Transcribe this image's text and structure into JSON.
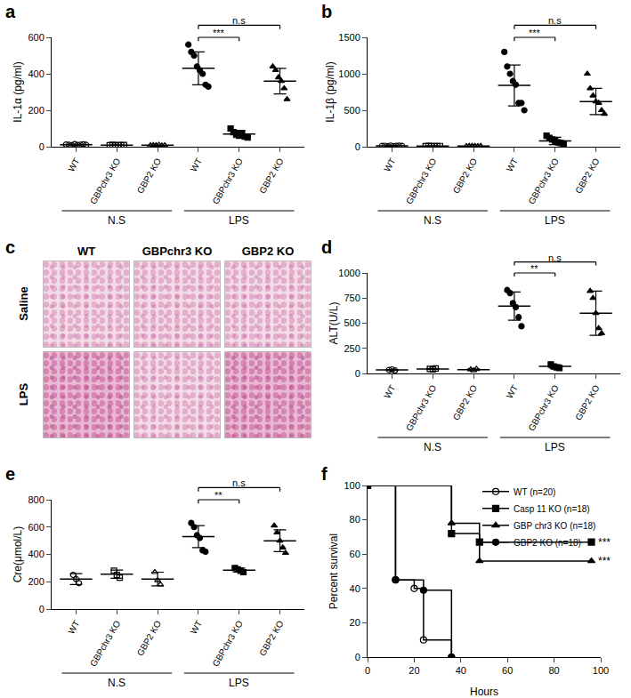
{
  "chart_data": [
    {
      "panel": "a",
      "type": "dot",
      "ylabel": "IL-1α (pg/ml)",
      "categories": [
        "WT",
        "GBPchr3 KO",
        "GBP2 KO",
        "WT",
        "GBPchr3 KO",
        "GBP2 KO"
      ],
      "groups": [
        {
          "label": "N.S",
          "categories": [
            0,
            1,
            2
          ]
        },
        {
          "label": "LPS",
          "categories": [
            3,
            4,
            5
          ]
        }
      ],
      "markers": [
        "circle-open",
        "square-open",
        "triangle-up-open",
        "circle",
        "square",
        "triangle-up"
      ],
      "points": [
        [
          12,
          10,
          8,
          14,
          9,
          11,
          13,
          10
        ],
        [
          8,
          10,
          7,
          9,
          8,
          9
        ],
        [
          7,
          9,
          8,
          10,
          6,
          8
        ],
        [
          560,
          520,
          500,
          440,
          420,
          400,
          340,
          330
        ],
        [
          100,
          80,
          70,
          60,
          70,
          55,
          50
        ],
        [
          440,
          420,
          380,
          360,
          320,
          260
        ]
      ],
      "means": [
        11,
        9,
        8,
        430,
        70,
        360
      ],
      "sds": [
        2,
        1,
        1,
        90,
        20,
        70
      ],
      "comparisons": [
        {
          "from": 3,
          "to": 4,
          "label": "***"
        },
        {
          "from": 3,
          "to": 5,
          "label": "n.s"
        }
      ],
      "ylim": [
        0,
        600
      ],
      "yticks": [
        0,
        200,
        400,
        600
      ]
    },
    {
      "panel": "b",
      "type": "dot",
      "ylabel": "IL-1β (pg/ml)",
      "categories": [
        "WT",
        "GBPchr3 KO",
        "GBP2 KO",
        "WT",
        "GBPchr3 KO",
        "GBP2 KO"
      ],
      "groups": [
        {
          "label": "N.S",
          "categories": [
            0,
            1,
            2
          ]
        },
        {
          "label": "LPS",
          "categories": [
            3,
            4,
            5
          ]
        }
      ],
      "markers": [
        "circle-open",
        "square-open",
        "triangle-up-open",
        "circle",
        "square",
        "triangle-up"
      ],
      "points": [
        [
          10,
          12,
          8,
          15,
          9,
          11,
          13,
          10
        ],
        [
          8,
          10,
          7,
          9,
          8,
          9
        ],
        [
          7,
          9,
          8,
          10,
          6,
          8
        ],
        [
          1300,
          1100,
          1000,
          900,
          850,
          600,
          600,
          500
        ],
        [
          150,
          120,
          100,
          80,
          60,
          50,
          40
        ],
        [
          1000,
          800,
          700,
          620,
          600,
          500,
          450
        ]
      ],
      "means": [
        11,
        9,
        8,
        840,
        80,
        620
      ],
      "sds": [
        2,
        1,
        1,
        280,
        50,
        180
      ],
      "comparisons": [
        {
          "from": 3,
          "to": 4,
          "label": "***"
        },
        {
          "from": 3,
          "to": 5,
          "label": "n.s"
        }
      ],
      "ylim": [
        0,
        1500
      ],
      "yticks": [
        0,
        500,
        1000,
        1500
      ]
    },
    {
      "panel": "c",
      "type": "image",
      "columns": [
        "WT",
        "GBPchr3 KO",
        "GBP2 KO"
      ],
      "rows": [
        "Saline",
        "LPS"
      ]
    },
    {
      "panel": "d",
      "type": "dot",
      "ylabel": "ALT(U/L)",
      "categories": [
        "WT",
        "GBPchr3 KO",
        "GBP2 KO",
        "WT",
        "GBPchr3 KO",
        "GBP2 KO"
      ],
      "groups": [
        {
          "label": "N.S",
          "categories": [
            0,
            1,
            2
          ]
        },
        {
          "label": "LPS",
          "categories": [
            3,
            4,
            5
          ]
        }
      ],
      "markers": [
        "circle-open",
        "square-open",
        "triangle-up-open",
        "circle",
        "square",
        "triangle-up"
      ],
      "points": [
        [
          35,
          40,
          30
        ],
        [
          45,
          40,
          50
        ],
        [
          40,
          30,
          45
        ],
        [
          830,
          800,
          700,
          660,
          560,
          470
        ],
        [
          90,
          70,
          60,
          55
        ],
        [
          820,
          750,
          600,
          450,
          400
        ]
      ],
      "means": [
        35,
        45,
        38,
        670,
        70,
        600
      ],
      "sds": [
        5,
        5,
        8,
        140,
        15,
        220
      ],
      "comparisons": [
        {
          "from": 3,
          "to": 4,
          "label": "**"
        },
        {
          "from": 3,
          "to": 5,
          "label": "n.s"
        }
      ],
      "ylim": [
        0,
        1000
      ],
      "yticks": [
        0,
        250,
        500,
        750,
        1000
      ]
    },
    {
      "panel": "e",
      "type": "dot",
      "ylabel": "Cre(μmol/L)",
      "categories": [
        "WT",
        "GBPchr3 KO",
        "GBP2 KO",
        "WT",
        "GBPchr3 KO",
        "GBP2 KO"
      ],
      "groups": [
        {
          "label": "N.S",
          "categories": [
            0,
            1,
            2
          ]
        },
        {
          "label": "LPS",
          "categories": [
            3,
            4,
            5
          ]
        }
      ],
      "markers": [
        "circle-open",
        "square-open",
        "triangle-up-open",
        "circle",
        "square",
        "triangle-up"
      ],
      "points": [
        [
          250,
          220,
          190
        ],
        [
          280,
          250,
          230
        ],
        [
          270,
          210,
          180
        ],
        [
          630,
          600,
          540,
          520,
          430,
          420
        ],
        [
          300,
          290,
          280,
          270
        ],
        [
          610,
          560,
          500,
          450,
          410
        ]
      ],
      "means": [
        220,
        255,
        220,
        530,
        285,
        500
      ],
      "sds": [
        40,
        30,
        50,
        80,
        15,
        80
      ],
      "comparisons": [
        {
          "from": 3,
          "to": 4,
          "label": "**"
        },
        {
          "from": 3,
          "to": 5,
          "label": "n.s"
        }
      ],
      "ylim": [
        0,
        800
      ],
      "yticks": [
        0,
        200,
        400,
        600,
        800
      ]
    },
    {
      "panel": "f",
      "type": "survival",
      "xlabel": "Hours",
      "ylabel": "Percent survival",
      "xlim": [
        0,
        100
      ],
      "xticks": [
        0,
        20,
        40,
        60,
        80,
        100
      ],
      "ylim": [
        0,
        100
      ],
      "yticks": [
        0,
        20,
        40,
        60,
        80,
        100
      ],
      "legend": "top right",
      "series": [
        {
          "name": "WT (n=20)",
          "marker": "circle-open",
          "x": [
            0,
            12,
            20,
            24,
            36
          ],
          "values": [
            100,
            45,
            40,
            10,
            0
          ]
        },
        {
          "name": "Casp 11 KO (n=18)",
          "marker": "square",
          "x": [
            0,
            36,
            48,
            96
          ],
          "values": [
            100,
            72,
            67,
            67
          ],
          "label": "***"
        },
        {
          "name": "GBP chr3 KO (n=18)",
          "marker": "triangle-up",
          "x": [
            0,
            36,
            48,
            96
          ],
          "values": [
            100,
            78,
            56,
            56
          ],
          "label": "***"
        },
        {
          "name": "GBP2 KO (n=18)",
          "marker": "circle",
          "x": [
            0,
            12,
            24,
            36
          ],
          "values": [
            100,
            45,
            39,
            0
          ]
        }
      ]
    }
  ]
}
